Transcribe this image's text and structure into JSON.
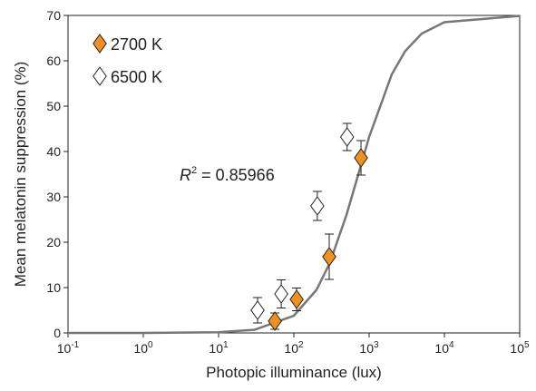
{
  "chart_data": {
    "type": "scatter",
    "x_label": "Photopic illuminance (lux)",
    "y_label": "Mean melatonin suppression (%)",
    "x_log": true,
    "xlim": [
      0.1,
      100000
    ],
    "ylim": [
      0,
      70
    ],
    "xticks": [
      {
        "value": 0.1,
        "label": "10",
        "exponent": "-1"
      },
      {
        "value": 1,
        "label": "10",
        "exponent": "0"
      },
      {
        "value": 10,
        "label": "10",
        "exponent": "1"
      },
      {
        "value": 100,
        "label": "10",
        "exponent": "2"
      },
      {
        "value": 1000,
        "label": "10",
        "exponent": "3"
      },
      {
        "value": 10000,
        "label": "10",
        "exponent": "4"
      },
      {
        "value": 100000,
        "label": "10",
        "exponent": "5"
      }
    ],
    "yticks": [
      0,
      10,
      20,
      30,
      40,
      50,
      60,
      70
    ],
    "legend": "upper left",
    "series": [
      {
        "name": "2700 K",
        "color": "#f0901e",
        "marker": "diamond",
        "x": [
          56,
          109,
          295,
          780
        ],
        "values": [
          2.6,
          7.4,
          16.8,
          38.6
        ],
        "errors": [
          1.8,
          2.5,
          5,
          3.8
        ]
      },
      {
        "name": "6500 K",
        "color": "#ffffff",
        "marker": "diamond",
        "x": [
          33,
          68,
          205,
          510
        ],
        "values": [
          5,
          8.6,
          28,
          43.2
        ],
        "errors": [
          2.8,
          3.1,
          3.2,
          3
        ]
      }
    ],
    "curve": {
      "color": "#777777",
      "x": [
        0.1,
        1,
        10,
        30,
        100,
        200,
        300,
        500,
        700,
        1000,
        2000,
        3000,
        5000,
        10000,
        100000
      ],
      "values": [
        0,
        0,
        0.14,
        0.7,
        3.8,
        9.5,
        15.4,
        26,
        34.3,
        43.2,
        57,
        62.1,
        66,
        68.5,
        69.9
      ]
    },
    "annotation": {
      "symbol": "R",
      "exponent": "2",
      "text": "= 0.85966"
    }
  }
}
